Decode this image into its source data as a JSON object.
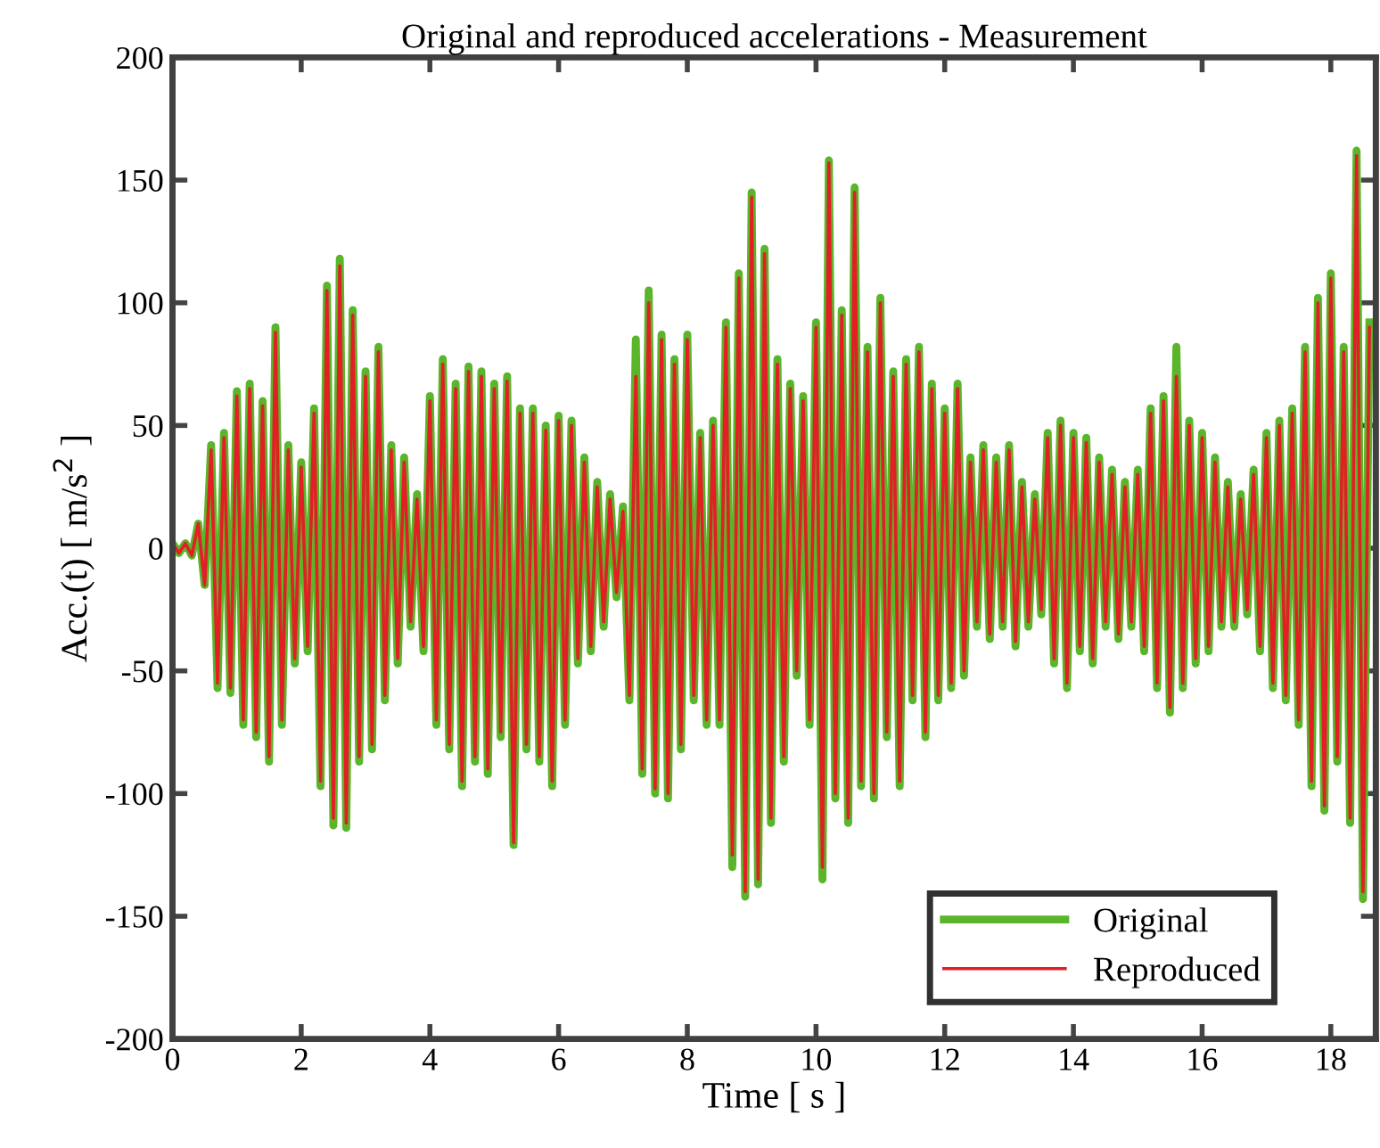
{
  "chart_data": {
    "type": "line",
    "title": "Original and reproduced accelerations - Measurement",
    "xlabel": "Time [ s ]",
    "ylabel": "Acc.(t) [ m/s$^{2}$ ]",
    "x": [
      0,
      0.1,
      0.2,
      0.3,
      0.4,
      0.5,
      0.6,
      0.7,
      0.8,
      0.9,
      1.0,
      1.1,
      1.2,
      1.3,
      1.4,
      1.5,
      1.6,
      1.7,
      1.8,
      1.9,
      2.0,
      2.1,
      2.2,
      2.3,
      2.4,
      2.5,
      2.6,
      2.7,
      2.8,
      2.9,
      3.0,
      3.1,
      3.2,
      3.3,
      3.4,
      3.5,
      3.6,
      3.7,
      3.8,
      3.9,
      4.0,
      4.1,
      4.2,
      4.3,
      4.4,
      4.5,
      4.6,
      4.7,
      4.8,
      4.9,
      5.0,
      5.1,
      5.2,
      5.3,
      5.4,
      5.5,
      5.6,
      5.7,
      5.8,
      5.9,
      6.0,
      6.1,
      6.2,
      6.3,
      6.4,
      6.5,
      6.6,
      6.7,
      6.8,
      6.9,
      7.0,
      7.1,
      7.2,
      7.3,
      7.4,
      7.5,
      7.6,
      7.7,
      7.8,
      7.9,
      8.0,
      8.1,
      8.2,
      8.3,
      8.4,
      8.5,
      8.6,
      8.7,
      8.8,
      8.9,
      9.0,
      9.1,
      9.2,
      9.3,
      9.4,
      9.5,
      9.6,
      9.7,
      9.8,
      9.9,
      10.0,
      10.1,
      10.2,
      10.3,
      10.4,
      10.5,
      10.6,
      10.7,
      10.8,
      10.9,
      11.0,
      11.1,
      11.2,
      11.3,
      11.4,
      11.5,
      11.6,
      11.7,
      11.8,
      11.9,
      12.0,
      12.1,
      12.2,
      12.3,
      12.4,
      12.5,
      12.6,
      12.7,
      12.8,
      12.9,
      13.0,
      13.1,
      13.2,
      13.3,
      13.4,
      13.5,
      13.6,
      13.7,
      13.8,
      13.9,
      14.0,
      14.1,
      14.2,
      14.3,
      14.4,
      14.5,
      14.6,
      14.7,
      14.8,
      14.9,
      15.0,
      15.1,
      15.2,
      15.3,
      15.4,
      15.5,
      15.6,
      15.7,
      15.8,
      15.9,
      16.0,
      16.1,
      16.2,
      16.3,
      16.4,
      16.5,
      16.6,
      16.7,
      16.8,
      16.9,
      17.0,
      17.1,
      17.2,
      17.3,
      17.4,
      17.5,
      17.6,
      17.7,
      17.8,
      17.9,
      18.0,
      18.1,
      18.2,
      18.3,
      18.4,
      18.5,
      18.6
    ],
    "series": [
      {
        "name": "Original",
        "color": "#5ab52a",
        "values": [
          2,
          -2,
          2,
          -3,
          10,
          -15,
          42,
          -57,
          47,
          -59,
          64,
          -72,
          67,
          -77,
          60,
          -87,
          90,
          -72,
          42,
          -47,
          35,
          -42,
          57,
          -97,
          107,
          -113,
          118,
          -114,
          97,
          -87,
          72,
          -82,
          82,
          -62,
          42,
          -47,
          37,
          -32,
          22,
          -42,
          62,
          -72,
          77,
          -82,
          67,
          -97,
          74,
          -87,
          72,
          -92,
          67,
          -77,
          70,
          -121,
          57,
          -82,
          57,
          -87,
          50,
          -97,
          54,
          -72,
          52,
          -47,
          37,
          -42,
          27,
          -32,
          22,
          -20,
          17,
          -62,
          85,
          -92,
          105,
          -100,
          87,
          -102,
          77,
          -82,
          87,
          -62,
          47,
          -72,
          52,
          -72,
          92,
          -130,
          112,
          -142,
          145,
          -137,
          122,
          -112,
          77,
          -87,
          67,
          -52,
          62,
          -72,
          92,
          -135,
          158,
          -102,
          97,
          -112,
          147,
          -97,
          82,
          -102,
          102,
          -77,
          72,
          -97,
          77,
          -62,
          82,
          -77,
          67,
          -62,
          57,
          -57,
          67,
          -52,
          37,
          -32,
          42,
          -37,
          37,
          -32,
          42,
          -40,
          27,
          -32,
          22,
          -27,
          47,
          -47,
          52,
          -57,
          47,
          -42,
          45,
          -47,
          37,
          -32,
          32,
          -37,
          27,
          -32,
          32,
          -42,
          57,
          -57,
          62,
          -67,
          82,
          -57,
          52,
          -47,
          47,
          -42,
          37,
          -32,
          27,
          -32,
          22,
          -27,
          32,
          -42,
          47,
          -57,
          52,
          -62,
          57,
          -72,
          82,
          -97,
          102,
          -107,
          112,
          -87,
          82,
          -112,
          162,
          -143,
          92
        ]
      },
      {
        "name": "Reproduced",
        "color": "#e31e24",
        "values": [
          2,
          -2,
          2,
          -3,
          10,
          -15,
          40,
          -55,
          45,
          -57,
          62,
          -70,
          65,
          -75,
          58,
          -85,
          88,
          -70,
          40,
          -45,
          33,
          -40,
          55,
          -95,
          105,
          -110,
          115,
          -112,
          95,
          -85,
          70,
          -80,
          80,
          -60,
          40,
          -45,
          35,
          -30,
          20,
          -40,
          60,
          -70,
          75,
          -80,
          65,
          -95,
          72,
          -85,
          70,
          -90,
          65,
          -75,
          68,
          -120,
          55,
          -80,
          55,
          -85,
          48,
          -95,
          52,
          -70,
          50,
          -45,
          35,
          -40,
          25,
          -30,
          20,
          -18,
          15,
          -60,
          70,
          -90,
          100,
          -98,
          85,
          -100,
          75,
          -80,
          85,
          -60,
          45,
          -70,
          50,
          -70,
          90,
          -125,
          110,
          -140,
          143,
          -135,
          120,
          -110,
          75,
          -85,
          65,
          -50,
          60,
          -70,
          90,
          -130,
          157,
          -100,
          95,
          -110,
          145,
          -95,
          80,
          -100,
          100,
          -75,
          70,
          -95,
          75,
          -60,
          80,
          -75,
          65,
          -60,
          55,
          -55,
          65,
          -50,
          35,
          -30,
          40,
          -35,
          35,
          -30,
          40,
          -38,
          25,
          -30,
          20,
          -25,
          45,
          -45,
          50,
          -55,
          45,
          -40,
          43,
          -45,
          35,
          -30,
          30,
          -35,
          25,
          -30,
          30,
          -40,
          55,
          -55,
          60,
          -65,
          70,
          -55,
          50,
          -45,
          45,
          -40,
          35,
          -30,
          25,
          -30,
          20,
          -25,
          30,
          -40,
          45,
          -55,
          50,
          -60,
          55,
          -70,
          80,
          -95,
          100,
          -105,
          110,
          -85,
          80,
          -110,
          160,
          -140,
          90
        ]
      }
    ],
    "xlim": [
      0,
      18.7
    ],
    "xticks": [
      0,
      2,
      4,
      6,
      8,
      10,
      12,
      14,
      16,
      18
    ],
    "ylim": [
      -200,
      200
    ],
    "yticks": [
      -200,
      -150,
      -100,
      -50,
      0,
      50,
      100,
      150,
      200
    ],
    "grid": false,
    "legend": "bottom right"
  }
}
